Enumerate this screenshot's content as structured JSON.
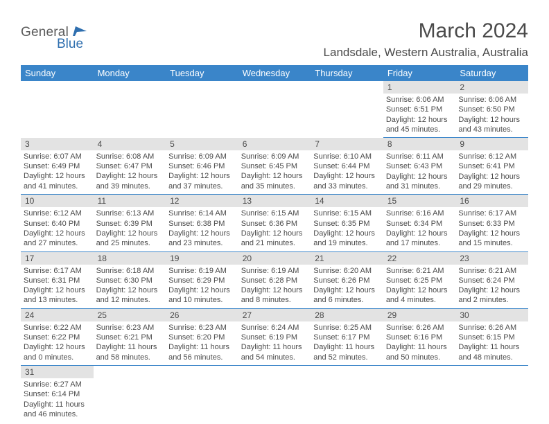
{
  "logo": {
    "text1": "General",
    "text2": "Blue",
    "icon_name": "flag-icon",
    "text1_color": "#5a5a5a",
    "text2_color": "#2f6faf"
  },
  "title": "March 2024",
  "location": "Landsdale, Western Australia, Australia",
  "header_bg": "#3a85c9",
  "header_fg": "#ffffff",
  "daynum_bg": "#e3e3e3",
  "border_color": "#3a85c9",
  "text_color": "#4a4a4a",
  "weekdays": [
    "Sunday",
    "Monday",
    "Tuesday",
    "Wednesday",
    "Thursday",
    "Friday",
    "Saturday"
  ],
  "weeks": [
    [
      null,
      null,
      null,
      null,
      null,
      {
        "n": "1",
        "sr": "Sunrise: 6:06 AM",
        "ss": "Sunset: 6:51 PM",
        "d1": "Daylight: 12 hours",
        "d2": "and 45 minutes."
      },
      {
        "n": "2",
        "sr": "Sunrise: 6:06 AM",
        "ss": "Sunset: 6:50 PM",
        "d1": "Daylight: 12 hours",
        "d2": "and 43 minutes."
      }
    ],
    [
      {
        "n": "3",
        "sr": "Sunrise: 6:07 AM",
        "ss": "Sunset: 6:49 PM",
        "d1": "Daylight: 12 hours",
        "d2": "and 41 minutes."
      },
      {
        "n": "4",
        "sr": "Sunrise: 6:08 AM",
        "ss": "Sunset: 6:47 PM",
        "d1": "Daylight: 12 hours",
        "d2": "and 39 minutes."
      },
      {
        "n": "5",
        "sr": "Sunrise: 6:09 AM",
        "ss": "Sunset: 6:46 PM",
        "d1": "Daylight: 12 hours",
        "d2": "and 37 minutes."
      },
      {
        "n": "6",
        "sr": "Sunrise: 6:09 AM",
        "ss": "Sunset: 6:45 PM",
        "d1": "Daylight: 12 hours",
        "d2": "and 35 minutes."
      },
      {
        "n": "7",
        "sr": "Sunrise: 6:10 AM",
        "ss": "Sunset: 6:44 PM",
        "d1": "Daylight: 12 hours",
        "d2": "and 33 minutes."
      },
      {
        "n": "8",
        "sr": "Sunrise: 6:11 AM",
        "ss": "Sunset: 6:43 PM",
        "d1": "Daylight: 12 hours",
        "d2": "and 31 minutes."
      },
      {
        "n": "9",
        "sr": "Sunrise: 6:12 AM",
        "ss": "Sunset: 6:41 PM",
        "d1": "Daylight: 12 hours",
        "d2": "and 29 minutes."
      }
    ],
    [
      {
        "n": "10",
        "sr": "Sunrise: 6:12 AM",
        "ss": "Sunset: 6:40 PM",
        "d1": "Daylight: 12 hours",
        "d2": "and 27 minutes."
      },
      {
        "n": "11",
        "sr": "Sunrise: 6:13 AM",
        "ss": "Sunset: 6:39 PM",
        "d1": "Daylight: 12 hours",
        "d2": "and 25 minutes."
      },
      {
        "n": "12",
        "sr": "Sunrise: 6:14 AM",
        "ss": "Sunset: 6:38 PM",
        "d1": "Daylight: 12 hours",
        "d2": "and 23 minutes."
      },
      {
        "n": "13",
        "sr": "Sunrise: 6:15 AM",
        "ss": "Sunset: 6:36 PM",
        "d1": "Daylight: 12 hours",
        "d2": "and 21 minutes."
      },
      {
        "n": "14",
        "sr": "Sunrise: 6:15 AM",
        "ss": "Sunset: 6:35 PM",
        "d1": "Daylight: 12 hours",
        "d2": "and 19 minutes."
      },
      {
        "n": "15",
        "sr": "Sunrise: 6:16 AM",
        "ss": "Sunset: 6:34 PM",
        "d1": "Daylight: 12 hours",
        "d2": "and 17 minutes."
      },
      {
        "n": "16",
        "sr": "Sunrise: 6:17 AM",
        "ss": "Sunset: 6:33 PM",
        "d1": "Daylight: 12 hours",
        "d2": "and 15 minutes."
      }
    ],
    [
      {
        "n": "17",
        "sr": "Sunrise: 6:17 AM",
        "ss": "Sunset: 6:31 PM",
        "d1": "Daylight: 12 hours",
        "d2": "and 13 minutes."
      },
      {
        "n": "18",
        "sr": "Sunrise: 6:18 AM",
        "ss": "Sunset: 6:30 PM",
        "d1": "Daylight: 12 hours",
        "d2": "and 12 minutes."
      },
      {
        "n": "19",
        "sr": "Sunrise: 6:19 AM",
        "ss": "Sunset: 6:29 PM",
        "d1": "Daylight: 12 hours",
        "d2": "and 10 minutes."
      },
      {
        "n": "20",
        "sr": "Sunrise: 6:19 AM",
        "ss": "Sunset: 6:28 PM",
        "d1": "Daylight: 12 hours",
        "d2": "and 8 minutes."
      },
      {
        "n": "21",
        "sr": "Sunrise: 6:20 AM",
        "ss": "Sunset: 6:26 PM",
        "d1": "Daylight: 12 hours",
        "d2": "and 6 minutes."
      },
      {
        "n": "22",
        "sr": "Sunrise: 6:21 AM",
        "ss": "Sunset: 6:25 PM",
        "d1": "Daylight: 12 hours",
        "d2": "and 4 minutes."
      },
      {
        "n": "23",
        "sr": "Sunrise: 6:21 AM",
        "ss": "Sunset: 6:24 PM",
        "d1": "Daylight: 12 hours",
        "d2": "and 2 minutes."
      }
    ],
    [
      {
        "n": "24",
        "sr": "Sunrise: 6:22 AM",
        "ss": "Sunset: 6:22 PM",
        "d1": "Daylight: 12 hours",
        "d2": "and 0 minutes."
      },
      {
        "n": "25",
        "sr": "Sunrise: 6:23 AM",
        "ss": "Sunset: 6:21 PM",
        "d1": "Daylight: 11 hours",
        "d2": "and 58 minutes."
      },
      {
        "n": "26",
        "sr": "Sunrise: 6:23 AM",
        "ss": "Sunset: 6:20 PM",
        "d1": "Daylight: 11 hours",
        "d2": "and 56 minutes."
      },
      {
        "n": "27",
        "sr": "Sunrise: 6:24 AM",
        "ss": "Sunset: 6:19 PM",
        "d1": "Daylight: 11 hours",
        "d2": "and 54 minutes."
      },
      {
        "n": "28",
        "sr": "Sunrise: 6:25 AM",
        "ss": "Sunset: 6:17 PM",
        "d1": "Daylight: 11 hours",
        "d2": "and 52 minutes."
      },
      {
        "n": "29",
        "sr": "Sunrise: 6:26 AM",
        "ss": "Sunset: 6:16 PM",
        "d1": "Daylight: 11 hours",
        "d2": "and 50 minutes."
      },
      {
        "n": "30",
        "sr": "Sunrise: 6:26 AM",
        "ss": "Sunset: 6:15 PM",
        "d1": "Daylight: 11 hours",
        "d2": "and 48 minutes."
      }
    ],
    [
      {
        "n": "31",
        "sr": "Sunrise: 6:27 AM",
        "ss": "Sunset: 6:14 PM",
        "d1": "Daylight: 11 hours",
        "d2": "and 46 minutes."
      },
      null,
      null,
      null,
      null,
      null,
      null
    ]
  ]
}
